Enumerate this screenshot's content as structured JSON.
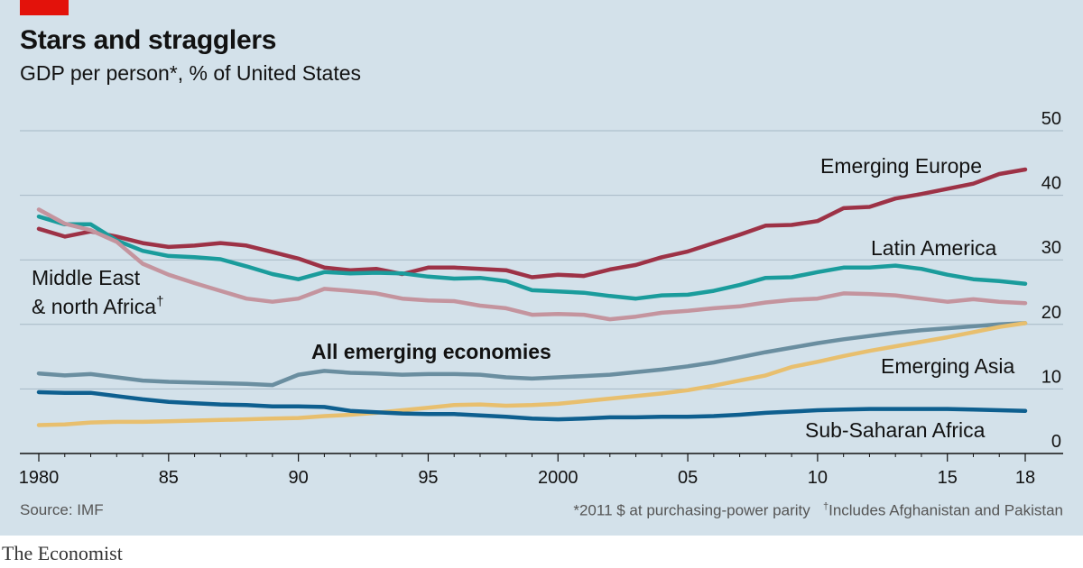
{
  "header": {
    "title": "Stars and stragglers",
    "subtitle": "GDP per person*, % of United States"
  },
  "footer": {
    "source": "Source: IMF",
    "note1": "*2011 $ at purchasing-power parity",
    "note2_mark": "†",
    "note2": "Includes Afghanistan and Pakistan"
  },
  "brand": "The Economist",
  "colors": {
    "background": "#d3e1ea",
    "emerging_europe": "#9d3246",
    "latin_america": "#1a9c9c",
    "mena": "#c4949e",
    "all_emerging": "#6a8ea0",
    "emerging_asia": "#e8bf6e",
    "sub_saharan_africa": "#0e5f8f",
    "accent": "#e3120b"
  },
  "chart_data": {
    "type": "line",
    "title": "Stars and stragglers",
    "subtitle": "GDP per person*, % of United States",
    "xlabel": "",
    "ylabel": "",
    "xlim": [
      1980,
      2018
    ],
    "ylim": [
      0,
      50
    ],
    "yticks": [
      0,
      10,
      20,
      30,
      40,
      50
    ],
    "xticks": [
      {
        "value": 1980,
        "label": "1980"
      },
      {
        "value": 1985,
        "label": "85"
      },
      {
        "value": 1990,
        "label": "90"
      },
      {
        "value": 1995,
        "label": "95"
      },
      {
        "value": 2000,
        "label": "2000"
      },
      {
        "value": 2005,
        "label": "05"
      },
      {
        "value": 2010,
        "label": "10"
      },
      {
        "value": 2015,
        "label": "15"
      },
      {
        "value": 2018,
        "label": "18"
      }
    ],
    "grid": true,
    "x": [
      1980,
      1981,
      1982,
      1983,
      1984,
      1985,
      1986,
      1987,
      1988,
      1989,
      1990,
      1991,
      1992,
      1993,
      1994,
      1995,
      1996,
      1997,
      1998,
      1999,
      2000,
      2001,
      2002,
      2003,
      2004,
      2005,
      2006,
      2007,
      2008,
      2009,
      2010,
      2011,
      2012,
      2013,
      2014,
      2015,
      2016,
      2017,
      2018
    ],
    "series": [
      {
        "key": "emerging_europe",
        "name": "Emerging Europe",
        "color": "#9d3246",
        "values": [
          34.8,
          33.6,
          34.4,
          33.6,
          32.6,
          32.0,
          32.2,
          32.6,
          32.2,
          31.2,
          30.2,
          28.8,
          28.4,
          28.6,
          27.8,
          28.8,
          28.8,
          28.6,
          28.4,
          27.3,
          27.7,
          27.5,
          28.5,
          29.2,
          30.4,
          31.3,
          32.6,
          33.9,
          35.3,
          35.4,
          36.0,
          38.0,
          38.2,
          39.5,
          40.2,
          41.0,
          41.8,
          43.3,
          44.0
        ]
      },
      {
        "key": "latin_america",
        "name": "Latin America",
        "color": "#1a9c9c",
        "values": [
          36.7,
          35.5,
          35.5,
          33.0,
          31.4,
          30.6,
          30.4,
          30.1,
          29.0,
          27.8,
          27.0,
          28.1,
          27.9,
          28.0,
          27.9,
          27.4,
          27.1,
          27.2,
          26.7,
          25.3,
          25.1,
          24.9,
          24.4,
          24.0,
          24.5,
          24.6,
          25.2,
          26.1,
          27.2,
          27.3,
          28.1,
          28.8,
          28.8,
          29.1,
          28.6,
          27.7,
          27.0,
          26.7,
          26.3
        ]
      },
      {
        "key": "mena",
        "name": "Middle East & north Africa",
        "color": "#c4949e",
        "values": [
          37.8,
          35.6,
          34.6,
          32.8,
          29.4,
          27.7,
          26.4,
          25.2,
          24.0,
          23.5,
          24.0,
          25.5,
          25.2,
          24.8,
          24.0,
          23.7,
          23.6,
          22.9,
          22.5,
          21.5,
          21.6,
          21.5,
          20.8,
          21.2,
          21.8,
          22.1,
          22.5,
          22.8,
          23.4,
          23.8,
          24.0,
          24.8,
          24.7,
          24.5,
          24.0,
          23.5,
          23.9,
          23.5,
          23.3
        ]
      },
      {
        "key": "all_emerging",
        "name": "All emerging economies",
        "color": "#6a8ea0",
        "values": [
          12.4,
          12.1,
          12.3,
          11.8,
          11.3,
          11.1,
          11.0,
          10.9,
          10.8,
          10.6,
          12.2,
          12.8,
          12.5,
          12.4,
          12.2,
          12.3,
          12.3,
          12.2,
          11.8,
          11.6,
          11.8,
          12.0,
          12.2,
          12.6,
          13.0,
          13.5,
          14.1,
          14.9,
          15.7,
          16.4,
          17.1,
          17.7,
          18.2,
          18.7,
          19.1,
          19.4,
          19.7,
          20.0,
          20.2
        ]
      },
      {
        "key": "emerging_asia",
        "name": "Emerging Asia",
        "color": "#e8bf6e",
        "values": [
          4.4,
          4.5,
          4.8,
          4.9,
          4.9,
          5.0,
          5.1,
          5.2,
          5.3,
          5.4,
          5.5,
          5.8,
          6.0,
          6.3,
          6.7,
          7.1,
          7.5,
          7.6,
          7.4,
          7.5,
          7.7,
          8.1,
          8.5,
          8.9,
          9.3,
          9.8,
          10.5,
          11.3,
          12.1,
          13.4,
          14.2,
          15.1,
          15.9,
          16.6,
          17.3,
          18.0,
          18.8,
          19.6,
          20.2
        ]
      },
      {
        "key": "sub_saharan_africa",
        "name": "Sub-Saharan Africa",
        "color": "#0e5f8f",
        "values": [
          9.5,
          9.4,
          9.4,
          8.9,
          8.4,
          8.0,
          7.8,
          7.6,
          7.5,
          7.3,
          7.3,
          7.2,
          6.6,
          6.4,
          6.2,
          6.1,
          6.1,
          5.9,
          5.7,
          5.4,
          5.3,
          5.4,
          5.6,
          5.6,
          5.7,
          5.7,
          5.8,
          6.0,
          6.3,
          6.5,
          6.7,
          6.8,
          6.9,
          6.9,
          6.9,
          6.9,
          6.8,
          6.7,
          6.6
        ]
      }
    ],
    "labels": {
      "emerging_europe": "Emerging Europe",
      "latin_america": "Latin America",
      "mena_line1": "Middle East",
      "mena_line2": "& north Africa",
      "mena_mark": "†",
      "all_emerging": "All emerging economies",
      "emerging_asia": "Emerging Asia",
      "sub_saharan_africa": "Sub-Saharan Africa"
    }
  }
}
